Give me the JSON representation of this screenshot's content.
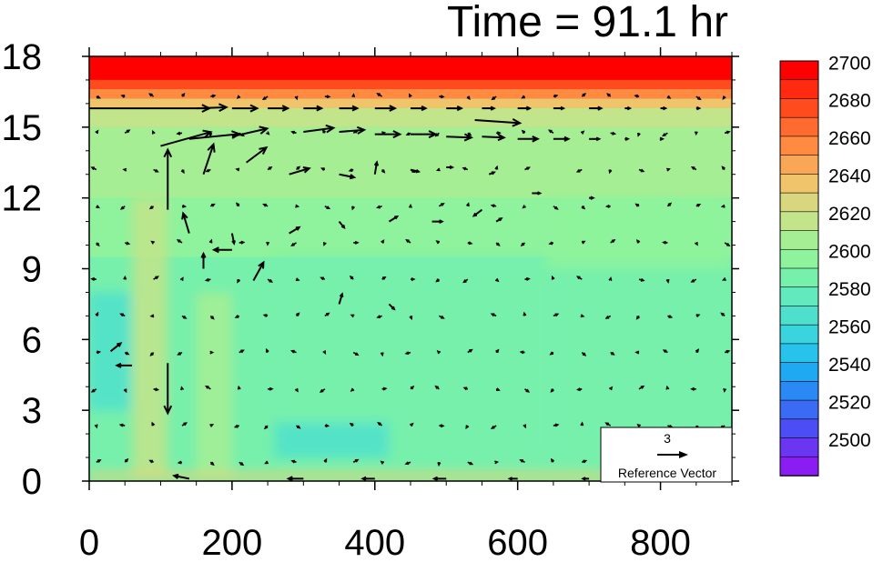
{
  "chart_data": {
    "type": "heatmap",
    "title": "Time = 91.1 hr",
    "xlabel": "",
    "ylabel": "",
    "xlim": [
      0,
      900
    ],
    "ylim": [
      0,
      18
    ],
    "x_ticks": [
      "0",
      "200",
      "400",
      "600",
      "800"
    ],
    "x_tick_values": [
      0,
      200,
      400,
      600,
      800
    ],
    "y_ticks": [
      "0",
      "3",
      "6",
      "9",
      "12",
      "15",
      "18"
    ],
    "y_tick_values": [
      0,
      3,
      6,
      9,
      12,
      15,
      18
    ],
    "colorbar": {
      "levels": [
        2700,
        2690,
        2680,
        2670,
        2660,
        2650,
        2640,
        2630,
        2620,
        2610,
        2600,
        2590,
        2580,
        2570,
        2560,
        2550,
        2540,
        2530,
        2520,
        2510,
        2500,
        2490
      ],
      "labels": [
        "2700",
        "2680",
        "2660",
        "2640",
        "2620",
        "2600",
        "2580",
        "2560",
        "2540",
        "2520",
        "2500"
      ],
      "label_values": [
        2700,
        2680,
        2660,
        2640,
        2620,
        2600,
        2580,
        2560,
        2540,
        2520,
        2500
      ],
      "colors": [
        "#ff0000",
        "#ff2a10",
        "#ff4b1e",
        "#ff6a2e",
        "#ff8a40",
        "#f9a755",
        "#f0c46b",
        "#d8d67e",
        "#c2e48a",
        "#a6ee94",
        "#8ef39c",
        "#77f0ac",
        "#62e9be",
        "#4fe0cd",
        "#3ad4df",
        "#27c3ec",
        "#1fa9f3",
        "#2a89f5",
        "#3b6af5",
        "#4c4df4",
        "#6a36f2",
        "#8a1ef2"
      ]
    },
    "reference_vector": {
      "label": "3",
      "caption": "Reference Vector"
    },
    "field_bands": [
      {
        "zmin": 17.0,
        "zmax": 18.0,
        "value": 2700
      },
      {
        "zmin": 16.6,
        "zmax": 17.0,
        "value": 2680
      },
      {
        "zmin": 16.2,
        "zmax": 16.6,
        "value": 2660
      },
      {
        "zmin": 15.8,
        "zmax": 16.2,
        "value": 2640
      },
      {
        "zmin": 15.0,
        "zmax": 15.8,
        "value": 2620
      },
      {
        "zmin": 12.0,
        "zmax": 15.0,
        "value": 2610
      },
      {
        "zmin": 9.5,
        "zmax": 12.0,
        "value": 2600
      },
      {
        "zmin": 0.0,
        "zmax": 9.5,
        "value": 2590
      }
    ],
    "field_patches": [
      {
        "x": [
          640,
          900
        ],
        "z": [
          9,
          12
        ],
        "value": 2600
      },
      {
        "x": [
          260,
          640
        ],
        "z": [
          1,
          9.5
        ],
        "value": 2590
      },
      {
        "x": [
          0,
          60
        ],
        "z": [
          3,
          8
        ],
        "value": 2575
      },
      {
        "x": [
          260,
          420
        ],
        "z": [
          1,
          2.5
        ],
        "value": 2575
      },
      {
        "x": [
          60,
          110
        ],
        "z": [
          0,
          12
        ],
        "value": 2620
      },
      {
        "x": [
          150,
          200
        ],
        "z": [
          0,
          8
        ],
        "value": 2610
      },
      {
        "x": [
          0,
          900
        ],
        "z": [
          0,
          0.4
        ],
        "value": 2630
      }
    ],
    "vectors": [
      {
        "x": 0,
        "z": 15.8,
        "u": 12.0,
        "w": 0
      },
      {
        "x": 150,
        "z": 15.8,
        "u": 3.0,
        "w": 0.1
      },
      {
        "x": 200,
        "z": 15.8,
        "u": 2.5,
        "w": 0
      },
      {
        "x": 250,
        "z": 15.8,
        "u": 2.0,
        "w": 0
      },
      {
        "x": 300,
        "z": 15.8,
        "u": 1.8,
        "w": 0
      },
      {
        "x": 350,
        "z": 15.8,
        "u": 1.8,
        "w": 0
      },
      {
        "x": 400,
        "z": 15.8,
        "u": 2.0,
        "w": 0
      },
      {
        "x": 450,
        "z": 15.8,
        "u": 1.5,
        "w": 0
      },
      {
        "x": 500,
        "z": 15.8,
        "u": 1.5,
        "w": 0
      },
      {
        "x": 550,
        "z": 15.8,
        "u": 1.2,
        "w": 0
      },
      {
        "x": 600,
        "z": 15.8,
        "u": 1.2,
        "w": 0
      },
      {
        "x": 650,
        "z": 15.8,
        "u": 1.0,
        "w": 0
      },
      {
        "x": 700,
        "z": 15.8,
        "u": 1.2,
        "w": 0
      },
      {
        "x": 750,
        "z": 15.8,
        "u": 0.5,
        "w": 0
      },
      {
        "x": 800,
        "z": 15.8,
        "u": 0.5,
        "w": 0
      },
      {
        "x": 850,
        "z": 15.8,
        "u": 0.3,
        "w": 0
      },
      {
        "x": 540,
        "z": 15.3,
        "u": 4.5,
        "w": -0.3
      },
      {
        "x": 100,
        "z": 14.2,
        "u": 5.0,
        "w": 1.4
      },
      {
        "x": 140,
        "z": 14.5,
        "u": 5.0,
        "w": 0.5
      },
      {
        "x": 200,
        "z": 14.6,
        "u": 3.5,
        "w": 0.8
      },
      {
        "x": 300,
        "z": 14.8,
        "u": 3.0,
        "w": 0.4
      },
      {
        "x": 350,
        "z": 14.8,
        "u": 2.5,
        "w": 0.2
      },
      {
        "x": 400,
        "z": 14.7,
        "u": 2.5,
        "w": 0
      },
      {
        "x": 450,
        "z": 14.7,
        "u": 2.5,
        "w": 0
      },
      {
        "x": 500,
        "z": 14.6,
        "u": 2.5,
        "w": -0.1
      },
      {
        "x": 550,
        "z": 14.6,
        "u": 2.2,
        "w": -0.1
      },
      {
        "x": 600,
        "z": 14.5,
        "u": 2.0,
        "w": 0
      },
      {
        "x": 650,
        "z": 14.5,
        "u": 1.5,
        "w": 0
      },
      {
        "x": 700,
        "z": 14.5,
        "u": 1.0,
        "w": 0
      },
      {
        "x": 750,
        "z": 14.5,
        "u": 0.3,
        "w": 0
      },
      {
        "x": 800,
        "z": 14.5,
        "u": 0.2,
        "w": 0
      },
      {
        "x": 110,
        "z": 11.5,
        "u": 0,
        "w": 6.0
      },
      {
        "x": 160,
        "z": 13.0,
        "u": 1.0,
        "w": 3.0
      },
      {
        "x": 220,
        "z": 13.5,
        "u": 2.0,
        "w": 1.5
      },
      {
        "x": 280,
        "z": 13.0,
        "u": 2.0,
        "w": 0.6
      },
      {
        "x": 350,
        "z": 13.0,
        "u": 1.5,
        "w": -0.3
      },
      {
        "x": 400,
        "z": 13.0,
        "u": 0.2,
        "w": 1.2
      },
      {
        "x": 450,
        "z": 13.2,
        "u": 0.8,
        "w": -0.2
      },
      {
        "x": 500,
        "z": 13.3,
        "u": 0.6,
        "w": 0
      },
      {
        "x": 560,
        "z": 13.0,
        "u": 0.5,
        "w": 0.2
      },
      {
        "x": 620,
        "z": 12.2,
        "u": 0.8,
        "w": 0
      },
      {
        "x": 700,
        "z": 12.0,
        "u": 0.4,
        "w": 0
      },
      {
        "x": 110,
        "z": 5.0,
        "u": 0,
        "w": -5.0
      },
      {
        "x": 140,
        "z": 10.5,
        "u": -0.6,
        "w": 2.0
      },
      {
        "x": 200,
        "z": 10.5,
        "u": 0.2,
        "w": -1.0
      },
      {
        "x": 280,
        "z": 10.5,
        "u": 1.0,
        "w": 0.6
      },
      {
        "x": 350,
        "z": 11.0,
        "u": 0.5,
        "w": -0.6
      },
      {
        "x": 420,
        "z": 11.0,
        "u": 0.8,
        "w": 0.5
      },
      {
        "x": 480,
        "z": 11.0,
        "u": 1.0,
        "w": 0
      },
      {
        "x": 550,
        "z": 11.5,
        "u": -0.8,
        "w": -0.6
      },
      {
        "x": 570,
        "z": 11.0,
        "u": 0.5,
        "w": 0.3
      },
      {
        "x": 200,
        "z": 9.8,
        "u": -1.8,
        "w": 0
      },
      {
        "x": 230,
        "z": 8.5,
        "u": 1.0,
        "w": 1.8
      },
      {
        "x": 160,
        "z": 9.0,
        "u": 0,
        "w": 1.5
      },
      {
        "x": 350,
        "z": 7.5,
        "u": 0.3,
        "w": 1.0
      },
      {
        "x": 420,
        "z": 7.5,
        "u": 0.5,
        "w": -0.5
      },
      {
        "x": 30,
        "z": 5.5,
        "u": 1.0,
        "w": 0.8
      },
      {
        "x": 60,
        "z": 4.9,
        "u": -1.5,
        "w": 0
      },
      {
        "x": 140,
        "z": 0.1,
        "u": -1.5,
        "w": 0.3
      },
      {
        "x": 300,
        "z": 0.1,
        "u": -1.5,
        "w": 0
      },
      {
        "x": 400,
        "z": 0.1,
        "u": -1.2,
        "w": 0
      },
      {
        "x": 500,
        "z": 0.1,
        "u": -1.2,
        "w": 0
      },
      {
        "x": 600,
        "z": 0.1,
        "u": -0.8,
        "w": 0
      },
      {
        "x": 700,
        "z": 0.1,
        "u": -0.6,
        "w": 0
      },
      {
        "x": 800,
        "z": 0.1,
        "u": -0.3,
        "w": 0
      }
    ]
  }
}
